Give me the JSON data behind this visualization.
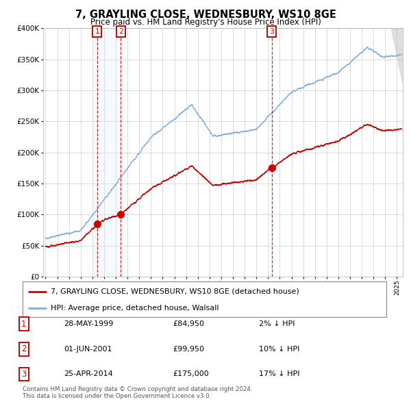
{
  "title": "7, GRAYLING CLOSE, WEDNESBURY, WS10 8GE",
  "subtitle": "Price paid vs. HM Land Registry's House Price Index (HPI)",
  "ylabel_ticks": [
    "£0",
    "£50K",
    "£100K",
    "£150K",
    "£200K",
    "£250K",
    "£300K",
    "£350K",
    "£400K"
  ],
  "ytick_values": [
    0,
    50000,
    100000,
    150000,
    200000,
    250000,
    300000,
    350000,
    400000
  ],
  "ylim": [
    0,
    400000
  ],
  "xlim_start": 1994.8,
  "xlim_end": 2025.5,
  "sale_dates": [
    1999.41,
    2001.42,
    2014.32
  ],
  "sale_prices": [
    84950,
    99950,
    175000
  ],
  "sale_labels": [
    "1",
    "2",
    "3"
  ],
  "vspan_pairs": [
    [
      1999.0,
      2001.5
    ]
  ],
  "legend_line1": "7, GRAYLING CLOSE, WEDNESBURY, WS10 8GE (detached house)",
  "legend_line2": "HPI: Average price, detached house, Walsall",
  "table_rows": [
    [
      "1",
      "28-MAY-1999",
      "£84,950",
      "2% ↓ HPI"
    ],
    [
      "2",
      "01-JUN-2001",
      "£99,950",
      "10% ↓ HPI"
    ],
    [
      "3",
      "25-APR-2014",
      "£175,000",
      "17% ↓ HPI"
    ]
  ],
  "footnote": "Contains HM Land Registry data © Crown copyright and database right 2024.\nThis data is licensed under the Open Government Licence v3.0.",
  "hpi_color": "#7aaddc",
  "sale_color": "#cc0000",
  "vspan_color": "#ddeeff",
  "vline_color": "#cc0000",
  "background_color": "#ffffff",
  "grid_color": "#cccccc",
  "hatch_color": "#bbbbbb"
}
